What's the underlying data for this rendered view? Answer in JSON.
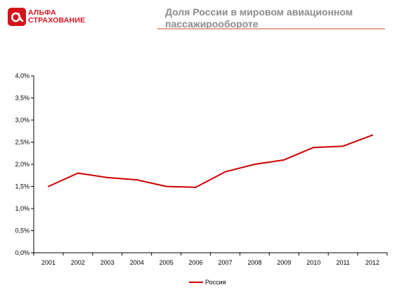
{
  "header": {
    "logo_line1": "АЛЬФА",
    "logo_line2": "СТРАХОВАНИЕ",
    "title_line1": "Доля России в мировом авиационном",
    "title_line2": "пассажирообороте"
  },
  "colors": {
    "brand": "#d3141c",
    "series": "#cc0000",
    "title": "#8c8c8c",
    "rule": "#e5a58e"
  },
  "chart_data": {
    "type": "line",
    "categories": [
      "2001",
      "2002",
      "2003",
      "2004",
      "2005",
      "2006",
      "2007",
      "2008",
      "2009",
      "2010",
      "2011",
      "2012"
    ],
    "series": [
      {
        "name": "Россия",
        "values": [
          1.5,
          1.8,
          1.7,
          1.65,
          1.5,
          1.48,
          1.83,
          2.0,
          2.1,
          2.38,
          2.41,
          2.66
        ]
      }
    ],
    "ylim": [
      0,
      4
    ],
    "yticks": [
      0,
      0.5,
      1.0,
      1.5,
      2.0,
      2.5,
      3.0,
      3.5,
      4.0
    ],
    "ytick_labels": [
      "0,0%",
      "0,5%",
      "1,0%",
      "1,5%",
      "2,0%",
      "2,5%",
      "3,0%",
      "3,5%",
      "4,0%"
    ],
    "grid": false,
    "legend_position": "bottom",
    "xlabel": "",
    "ylabel": ""
  }
}
